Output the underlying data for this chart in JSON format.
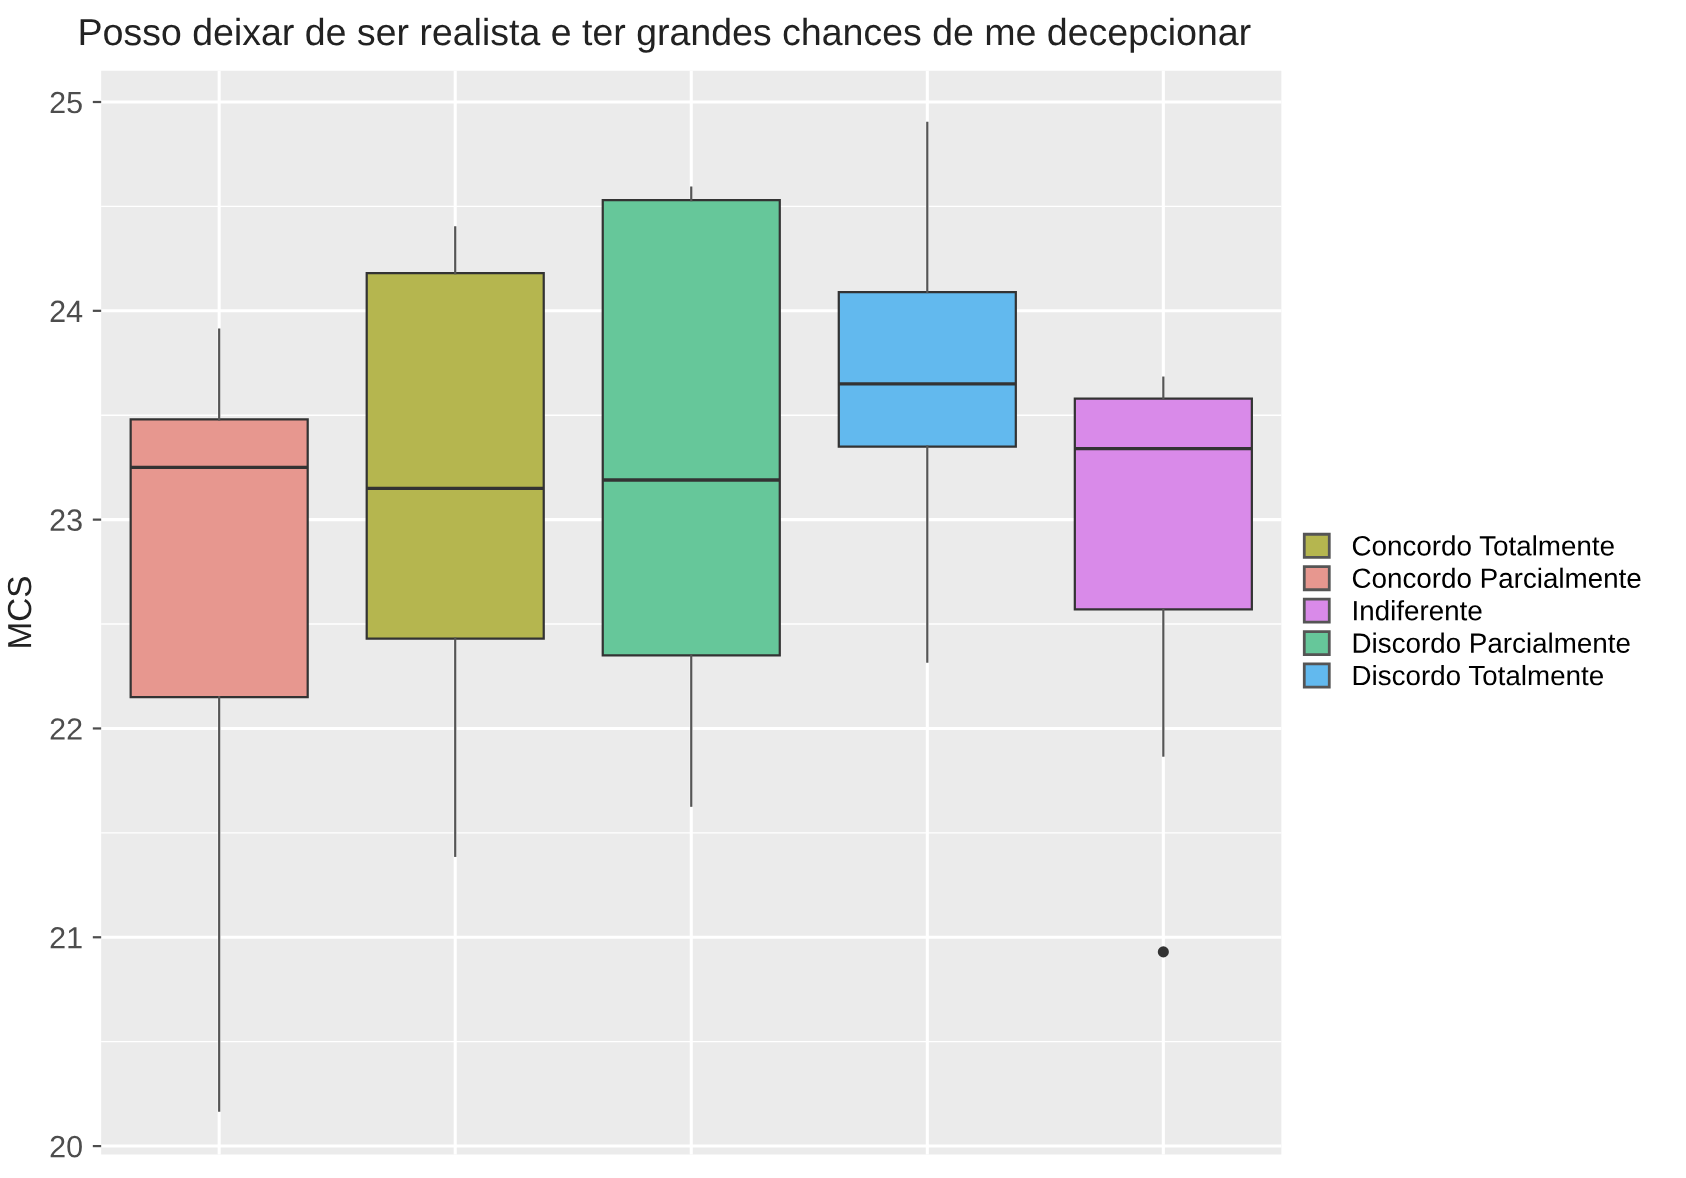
{
  "chart_data": {
    "type": "box",
    "title": "Posso deixar de ser realista e ter grandes chances de me decepcionar",
    "ylabel": "MCS",
    "categories": [
      null,
      null,
      null,
      null,
      null
    ],
    "series": [
      {
        "name": "Concordo Totalmente",
        "color": "#b5b64f",
        "boxes": [
          null,
          {
            "low": 21.39,
            "q1": 22.43,
            "median": 23.15,
            "q3": 24.18,
            "high": 24.4
          },
          null,
          null,
          null
        ]
      },
      {
        "name": "Concordo Parcialmente",
        "color": "#e7978f",
        "boxes": [
          {
            "low": 20.17,
            "q1": 22.15,
            "median": 23.25,
            "q3": 23.48,
            "high": 23.91
          },
          null,
          null,
          null,
          null
        ]
      },
      {
        "name": "Indiferente",
        "color": "#d98ae9",
        "boxes": [
          null,
          null,
          null,
          null,
          {
            "low": 21.87,
            "q1": 22.57,
            "median": 23.34,
            "q3": 23.58,
            "high": 23.68,
            "outliers": [
              20.93
            ]
          }
        ]
      },
      {
        "name": "Discordo Parcialmente",
        "color": "#66c79a",
        "boxes": [
          null,
          null,
          {
            "low": 21.63,
            "q1": 22.35,
            "median": 23.19,
            "q3": 24.53,
            "high": 24.59
          },
          null,
          null
        ]
      },
      {
        "name": "Discordo Totalmente",
        "color": "#62b9ee",
        "boxes": [
          null,
          null,
          null,
          {
            "low": 22.32,
            "q1": 23.35,
            "median": 23.65,
            "q3": 24.09,
            "high": 24.9
          },
          null
        ]
      }
    ],
    "ylim": [
      19.96,
      25.15
    ],
    "yticks": [
      20,
      21,
      22,
      23,
      24,
      25
    ],
    "grid": true,
    "legend": "right"
  }
}
